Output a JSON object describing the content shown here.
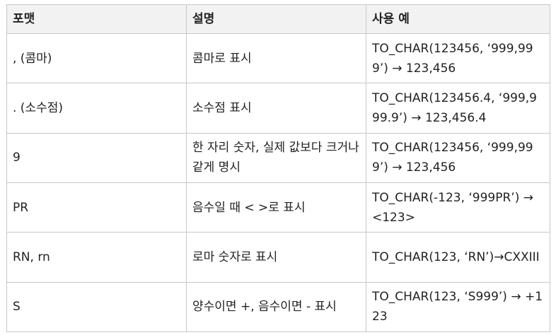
{
  "table": {
    "headers": [
      "포맷",
      "설명",
      "사용 예"
    ],
    "rows": [
      {
        "format": ", (콤마)",
        "description": "콤마로 표시",
        "example": "TO_CHAR(123456, ‘999,999’) → 123,456"
      },
      {
        "format": ". (소수점)",
        "description": "소수점 표시",
        "example": "TO_CHAR(123456.4, ‘999,999.9’) → 123,456.4"
      },
      {
        "format": "9",
        "description": "한 자리 숫자, 실제 값보다 크거나 같게 명시",
        "example": "TO_CHAR(123456, ‘999,999’) → 123,456"
      },
      {
        "format": "PR",
        "description": "음수일 때 < >로 표시",
        "example": "TO_CHAR(-123, ‘999PR’) → <123>"
      },
      {
        "format": "RN, rn",
        "description": "로마 숫자로 표시",
        "example": "TO_CHAR(123, ‘RN’)→CXXIII"
      },
      {
        "format": "S",
        "description": "양수이면 +, 음수이면 - 표시",
        "example": "TO_CHAR(123, ‘S999’) → +123"
      }
    ]
  }
}
